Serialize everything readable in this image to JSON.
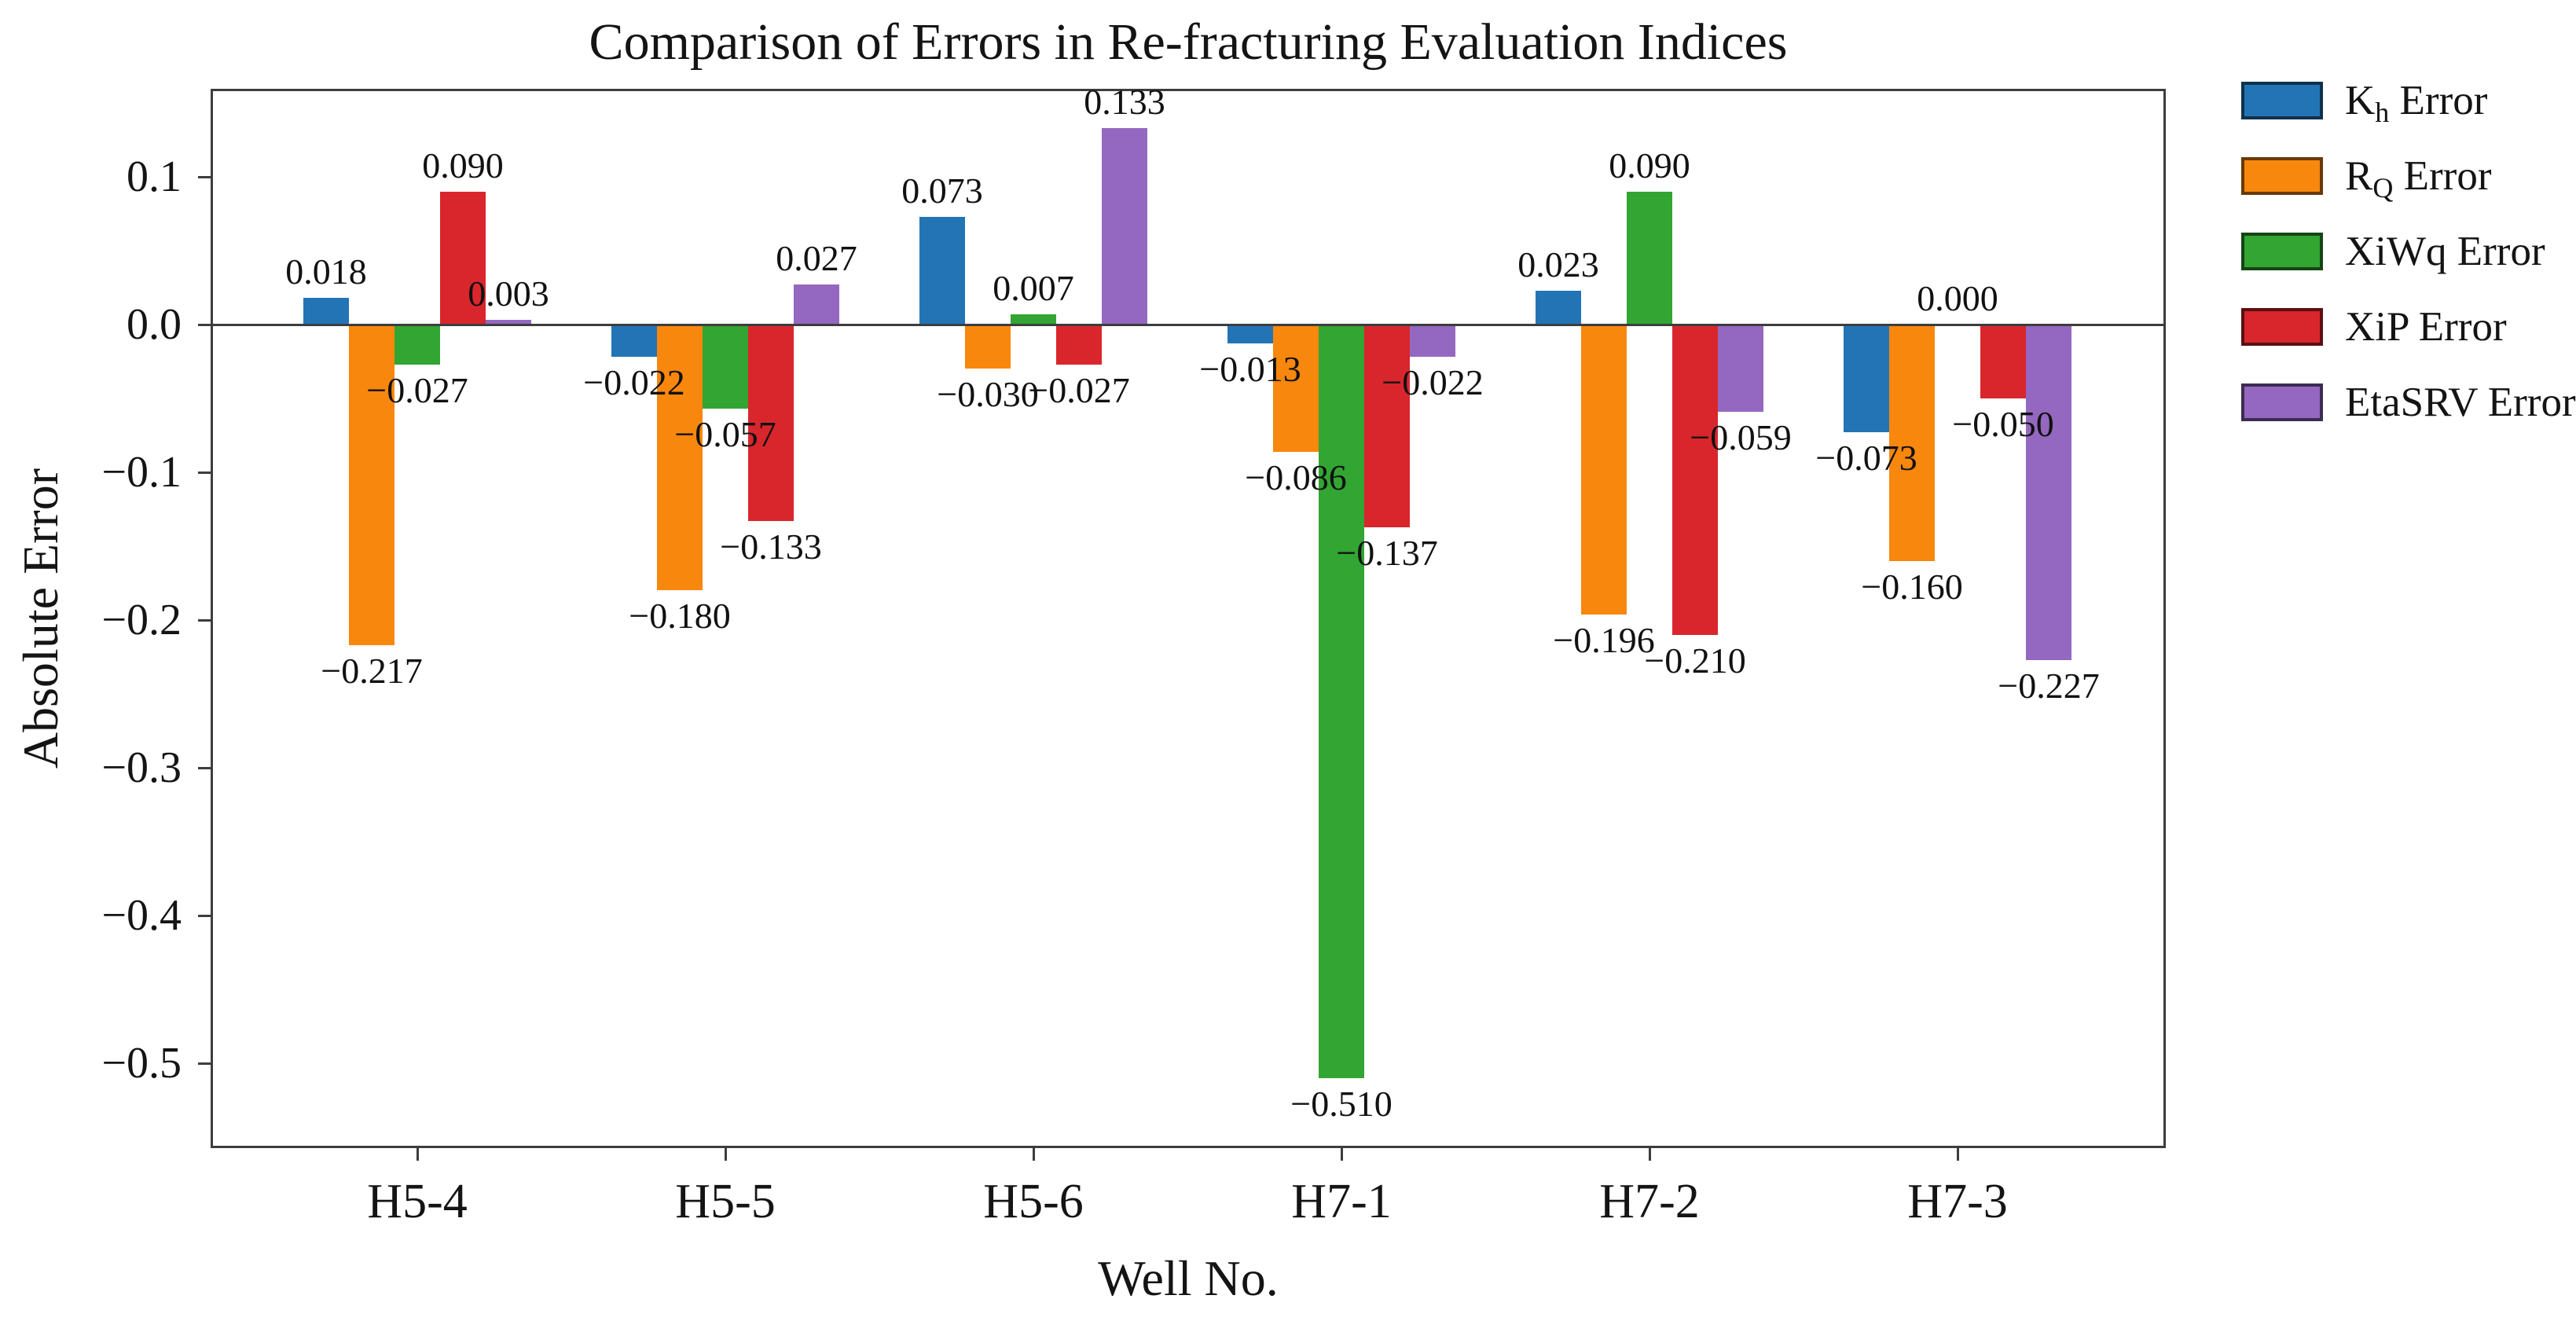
{
  "figure": {
    "kind": "static-chart-figure"
  },
  "chart_data": {
    "type": "bar",
    "title": "Comparison of Errors in Re-fracturing Evaluation Indices",
    "xlabel": "Well No.",
    "ylabel": "Absolute Error",
    "categories": [
      "H5-4",
      "H5-5",
      "H5-6",
      "H7-1",
      "H7-2",
      "H7-3"
    ],
    "series": [
      {
        "name": "Kh Error",
        "label_base": "K",
        "label_sub": "h",
        "label_suffix": " Error",
        "color": "#2374b5",
        "values": [
          0.018,
          -0.022,
          0.073,
          -0.013,
          0.023,
          -0.073
        ]
      },
      {
        "name": "RQ Error",
        "label_base": "R",
        "label_sub": "Q",
        "label_suffix": " Error",
        "color": "#f8870e",
        "values": [
          -0.217,
          -0.18,
          -0.03,
          -0.086,
          -0.196,
          -0.16
        ]
      },
      {
        "name": "XiWq Error",
        "label_base": "XiWq",
        "label_sub": "",
        "label_suffix": " Error",
        "color": "#32a532",
        "values": [
          -0.027,
          -0.057,
          0.007,
          -0.51,
          0.09,
          0.0
        ]
      },
      {
        "name": "XiP Error",
        "label_base": "XiP",
        "label_sub": "",
        "label_suffix": " Error",
        "color": "#d9262c",
        "values": [
          0.09,
          -0.133,
          -0.027,
          -0.137,
          -0.21,
          -0.05
        ]
      },
      {
        "name": "EtaSRV Error",
        "label_base": "EtaSRV",
        "label_sub": "",
        "label_suffix": " Error",
        "color": "#9468c0",
        "values": [
          0.003,
          0.027,
          0.133,
          -0.022,
          -0.059,
          -0.227
        ]
      }
    ],
    "yticks": [
      0.1,
      0.0,
      -0.1,
      -0.2,
      -0.3,
      -0.4,
      -0.5
    ],
    "ylim": [
      -0.559,
      0.158
    ],
    "grid": false,
    "legend_position": "outside-upper-right",
    "value_labels": true,
    "value_label_decimals": 3,
    "axis_color": "#3d3d3d",
    "text_color": "#141414"
  }
}
